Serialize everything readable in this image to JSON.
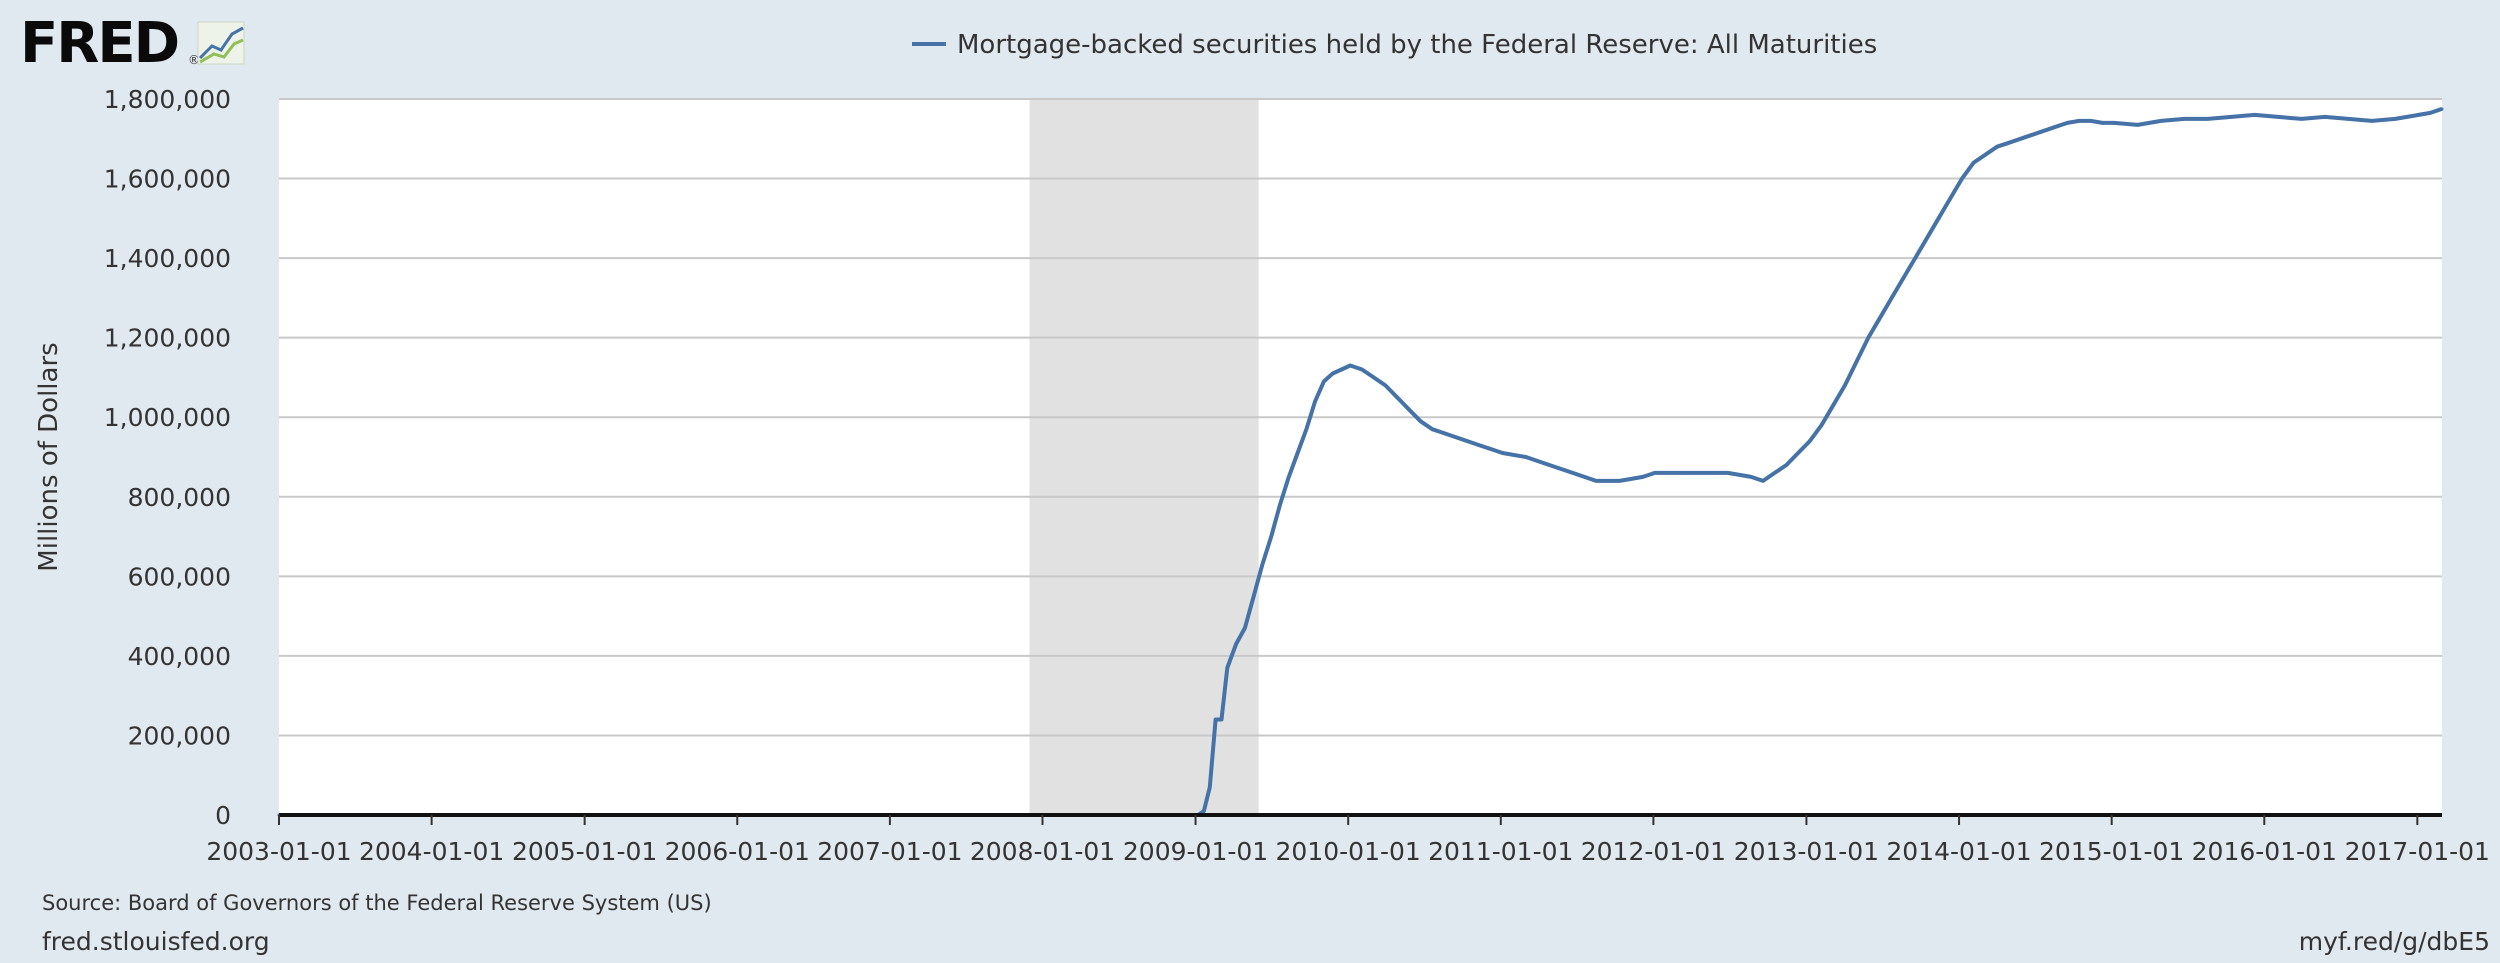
{
  "brand": {
    "logo_text": "FRED",
    "logo_mark": "®",
    "logo_icon": "line-graph-icon"
  },
  "footer": {
    "source": "Source: Board of Governors of the Federal Reserve System (US)",
    "site": "fred.stlouisfed.org",
    "short_link": "myf.red/g/dbE5"
  },
  "colors": {
    "background": "#e1e9f0",
    "plot_area": "#ffffff",
    "series": "#4572a7",
    "recession": "#e1e1e1",
    "grid": "#c8c8c8",
    "text": "#333333"
  },
  "chart_data": {
    "type": "line",
    "title": "",
    "xlabel": "",
    "ylabel": "Millions of Dollars",
    "legend_position": "top-center",
    "grid": true,
    "ylim": [
      0,
      1800000
    ],
    "xlim": [
      "2003-01-01",
      "2017-03-01"
    ],
    "y_ticks": [
      0,
      200000,
      400000,
      600000,
      800000,
      1000000,
      1200000,
      1400000,
      1600000,
      1800000
    ],
    "y_tick_labels": [
      "0",
      "200,000",
      "400,000",
      "600,000",
      "800,000",
      "1,000,000",
      "1,200,000",
      "1,400,000",
      "1,600,000",
      "1,800,000"
    ],
    "x_tick_labels": [
      "2003-01-01",
      "2004-01-01",
      "2005-01-01",
      "2006-01-01",
      "2007-01-01",
      "2008-01-01",
      "2009-01-01",
      "2010-01-01",
      "2011-01-01",
      "2012-01-01",
      "2013-01-01",
      "2014-01-01",
      "2015-01-01",
      "2016-01-01",
      "2017-01-01"
    ],
    "shaded_regions": [
      {
        "label": "recession",
        "start": "2007-12-01",
        "end": "2009-06-01"
      }
    ],
    "series": [
      {
        "name": "Mortgage-backed securities held by the Federal Reserve: All Maturities",
        "x": [
          "2003-01-01",
          "2008-12-31",
          "2009-01-07",
          "2009-01-21",
          "2009-02-04",
          "2009-02-18",
          "2009-03-04",
          "2009-03-18",
          "2009-04-08",
          "2009-04-29",
          "2009-05-20",
          "2009-06-10",
          "2009-07-01",
          "2009-07-22",
          "2009-08-12",
          "2009-09-02",
          "2009-09-23",
          "2009-10-14",
          "2009-11-04",
          "2009-11-25",
          "2009-12-16",
          "2010-01-06",
          "2010-02-03",
          "2010-03-03",
          "2010-03-31",
          "2010-04-28",
          "2010-05-26",
          "2010-06-23",
          "2010-07-21",
          "2010-08-18",
          "2010-09-15",
          "2010-10-13",
          "2010-11-10",
          "2010-12-08",
          "2011-01-05",
          "2011-03-02",
          "2011-04-27",
          "2011-06-22",
          "2011-08-17",
          "2011-10-12",
          "2011-12-07",
          "2012-01-04",
          "2012-03-07",
          "2012-05-02",
          "2012-06-27",
          "2012-08-22",
          "2012-09-19",
          "2012-10-17",
          "2012-11-14",
          "2012-12-12",
          "2013-01-09",
          "2013-02-06",
          "2013-03-06",
          "2013-04-03",
          "2013-05-01",
          "2013-05-29",
          "2013-06-26",
          "2013-07-24",
          "2013-08-21",
          "2013-09-18",
          "2013-10-16",
          "2013-11-13",
          "2013-12-11",
          "2014-01-08",
          "2014-02-05",
          "2014-03-05",
          "2014-04-02",
          "2014-04-30",
          "2014-05-28",
          "2014-06-25",
          "2014-07-23",
          "2014-08-20",
          "2014-09-17",
          "2014-10-15",
          "2014-11-12",
          "2014-12-10",
          "2015-01-07",
          "2015-03-04",
          "2015-04-29",
          "2015-06-24",
          "2015-08-19",
          "2015-10-14",
          "2015-12-09",
          "2016-02-03",
          "2016-03-30",
          "2016-05-25",
          "2016-07-20",
          "2016-09-14",
          "2016-11-09",
          "2017-01-04",
          "2017-02-01",
          "2017-03-01"
        ],
        "values": [
          0,
          0,
          0,
          10000,
          70000,
          240000,
          240000,
          370000,
          430000,
          470000,
          550000,
          630000,
          700000,
          780000,
          850000,
          910000,
          970000,
          1040000,
          1090000,
          1110000,
          1120000,
          1130000,
          1120000,
          1100000,
          1080000,
          1050000,
          1020000,
          990000,
          970000,
          960000,
          950000,
          940000,
          930000,
          920000,
          910000,
          900000,
          880000,
          860000,
          840000,
          840000,
          850000,
          860000,
          860000,
          860000,
          860000,
          850000,
          840000,
          860000,
          880000,
          910000,
          940000,
          980000,
          1030000,
          1080000,
          1140000,
          1200000,
          1250000,
          1300000,
          1350000,
          1400000,
          1450000,
          1500000,
          1550000,
          1600000,
          1640000,
          1660000,
          1680000,
          1690000,
          1700000,
          1710000,
          1720000,
          1730000,
          1740000,
          1745000,
          1745000,
          1740000,
          1740000,
          1735000,
          1745000,
          1750000,
          1750000,
          1755000,
          1760000,
          1755000,
          1750000,
          1755000,
          1750000,
          1745000,
          1750000,
          1760000,
          1765000,
          1775000
        ]
      }
    ]
  }
}
